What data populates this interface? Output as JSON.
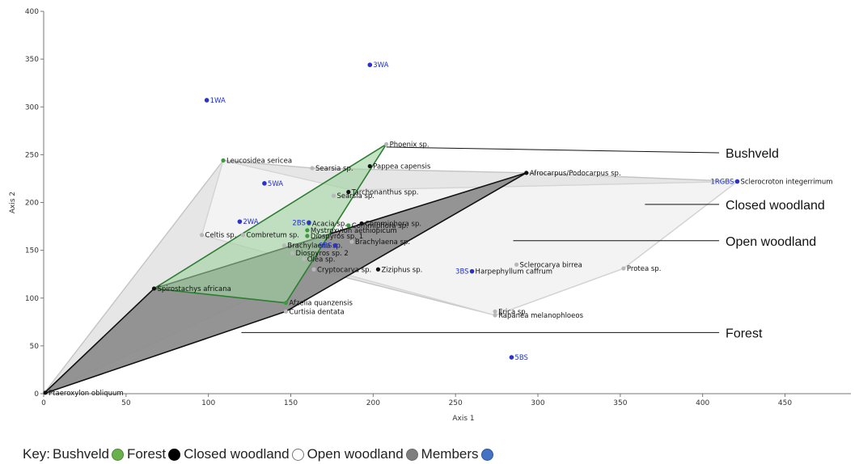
{
  "chart_data": {
    "type": "scatter",
    "xlabel": "Axis 1",
    "ylabel": "Axis 2",
    "xlim": [
      0,
      490
    ],
    "ylim": [
      0,
      400
    ],
    "x_ticks": [
      0,
      50,
      100,
      150,
      200,
      250,
      300,
      350,
      400,
      450
    ],
    "y_ticks": [
      0,
      50,
      100,
      150,
      200,
      250,
      300,
      350,
      400
    ],
    "grid": false,
    "legend": "none",
    "colors": {
      "bushveld": "#3f9a3f",
      "forest": "#111111",
      "closed": "#b8b8b8",
      "members": "#2b34c8"
    },
    "points": [
      {
        "label": "Phoenix sp.",
        "x": 208,
        "y": 261,
        "group": "closed"
      },
      {
        "label": "Pappea capensis",
        "x": 198,
        "y": 238,
        "group": "forest"
      },
      {
        "label": "Leucosidea sericea",
        "x": 109,
        "y": 244,
        "group": "bushveld"
      },
      {
        "label": "Searsia sp.",
        "x": 163,
        "y": 236,
        "group": "closed"
      },
      {
        "label": "Searsia sp.",
        "x": 176,
        "y": 207,
        "group": "closed"
      },
      {
        "label": "Tarchonanthus spp.",
        "x": 185,
        "y": 211,
        "group": "forest"
      },
      {
        "label": "Afrocarpus/Podocarpus sp.",
        "x": 293,
        "y": 231,
        "group": "forest"
      },
      {
        "label": "Sclerocroton integerrimum",
        "x": 421,
        "y": 222,
        "group": "closed"
      },
      {
        "label": "Commiphora sp.",
        "x": 185,
        "y": 176,
        "group": "bushveld"
      },
      {
        "label": "Commiphora sp.",
        "x": 193,
        "y": 178,
        "group": "forest"
      },
      {
        "label": "Acacia sp.",
        "x": 161,
        "y": 178,
        "group": "bushveld"
      },
      {
        "label": "Mystroxylon aethiopicum",
        "x": 160,
        "y": 171,
        "group": "bushveld"
      },
      {
        "label": "Diospyros sp. 1",
        "x": 160,
        "y": 165,
        "group": "bushveld"
      },
      {
        "label": "Celtis sp.",
        "x": 96,
        "y": 166,
        "group": "closed"
      },
      {
        "label": "Combretum sp.",
        "x": 121,
        "y": 166,
        "group": "closed"
      },
      {
        "label": "Brachylaena sp.",
        "x": 146,
        "y": 155,
        "group": "closed"
      },
      {
        "label": "Brachylaena sp.",
        "x": 187,
        "y": 159,
        "group": "closed"
      },
      {
        "label": "Diospyros sp. 2",
        "x": 151,
        "y": 147,
        "group": "closed"
      },
      {
        "label": "Olea sp.",
        "x": 158,
        "y": 141,
        "group": "closed"
      },
      {
        "label": "Cryptocarya sp.",
        "x": 164,
        "y": 130,
        "group": "closed"
      },
      {
        "label": "Ziziphus sp.",
        "x": 203,
        "y": 130,
        "group": "forest"
      },
      {
        "label": "Sclerocarya birrea",
        "x": 287,
        "y": 135,
        "group": "closed"
      },
      {
        "label": "Protea sp.",
        "x": 352,
        "y": 131,
        "group": "closed"
      },
      {
        "label": "Harpephyllum caffrum",
        "x": 260,
        "y": 128,
        "group": "closed"
      },
      {
        "label": "Spirostachys africana",
        "x": 67,
        "y": 110,
        "group": "forest"
      },
      {
        "label": "Afzelia quanzensis",
        "x": 147,
        "y": 95,
        "group": "bushveld"
      },
      {
        "label": "Curtisia dentata",
        "x": 147,
        "y": 86,
        "group": "closed"
      },
      {
        "label": "Erica sp.",
        "x": 274,
        "y": 86,
        "group": "closed"
      },
      {
        "label": "Rapanea melanophloeos",
        "x": 274,
        "y": 82,
        "group": "closed"
      },
      {
        "label": "Ptaeroxylon obliquum",
        "x": 1,
        "y": 1,
        "group": "forest"
      }
    ],
    "members": [
      {
        "label": "3WA",
        "x": 198,
        "y": 344
      },
      {
        "label": "1WA",
        "x": 99,
        "y": 307
      },
      {
        "label": "5WA",
        "x": 134,
        "y": 220
      },
      {
        "label": "2WA",
        "x": 119,
        "y": 180
      },
      {
        "label": "2BS",
        "x": 161,
        "y": 179
      },
      {
        "label": "6BS",
        "x": 177,
        "y": 155
      },
      {
        "label": "1RGBS",
        "x": 421,
        "y": 222
      },
      {
        "label": "3BS",
        "x": 260,
        "y": 128
      },
      {
        "label": "5BS",
        "x": 284,
        "y": 38
      }
    ],
    "hulls": [
      {
        "group": "open",
        "fill": "#e2e2e2",
        "stroke": "#c4c4c4",
        "points": [
          [
            0,
            0
          ],
          [
            109,
            244
          ],
          [
            163,
            236
          ],
          [
            293,
            231
          ],
          [
            421,
            222
          ],
          [
            352,
            131
          ],
          [
            274,
            82
          ],
          [
            164,
            130
          ]
        ]
      },
      {
        "group": "closed",
        "fill": "#f4f4f4",
        "stroke": "#d4d4d4",
        "points": [
          [
            96,
            166
          ],
          [
            109,
            244
          ],
          [
            187,
            213
          ],
          [
            421,
            222
          ],
          [
            352,
            131
          ],
          [
            274,
            82
          ]
        ]
      },
      {
        "group": "forest",
        "fill": "#8e8e8e",
        "stroke": "#111111",
        "points": [
          [
            0,
            0
          ],
          [
            67,
            110
          ],
          [
            293,
            231
          ],
          [
            147,
            86
          ]
        ]
      },
      {
        "group": "bushveld",
        "fill": "#9fd09f",
        "stroke": "#2e7d32",
        "points": [
          [
            67,
            110
          ],
          [
            208,
            261
          ],
          [
            147,
            95
          ]
        ]
      }
    ],
    "annotations": [
      {
        "text": "Bushveld",
        "from": [
          208,
          258
        ],
        "to": [
          410,
          252
        ]
      },
      {
        "text": "Closed woodland",
        "from": [
          365,
          198
        ],
        "to": [
          410,
          198
        ]
      },
      {
        "text": "Open woodland",
        "from": [
          285,
          160
        ],
        "to": [
          410,
          160
        ]
      },
      {
        "text": "Forest",
        "from": [
          120,
          64
        ],
        "to": [
          410,
          64
        ]
      }
    ]
  },
  "key": {
    "title": "Key:",
    "items": [
      {
        "label": "Bushveld",
        "color": "#6ab04c",
        "border": "#4c8a34"
      },
      {
        "label": "Forest",
        "color": "#000000",
        "border": "#000000"
      },
      {
        "label": "Closed woodland",
        "color": "#ffffff",
        "border": "#777777"
      },
      {
        "label": "Open woodland",
        "color": "#7f7f7f",
        "border": "#6a6a6a"
      },
      {
        "label": "Members",
        "color": "#4472c4",
        "border": "#2f5597"
      }
    ]
  }
}
